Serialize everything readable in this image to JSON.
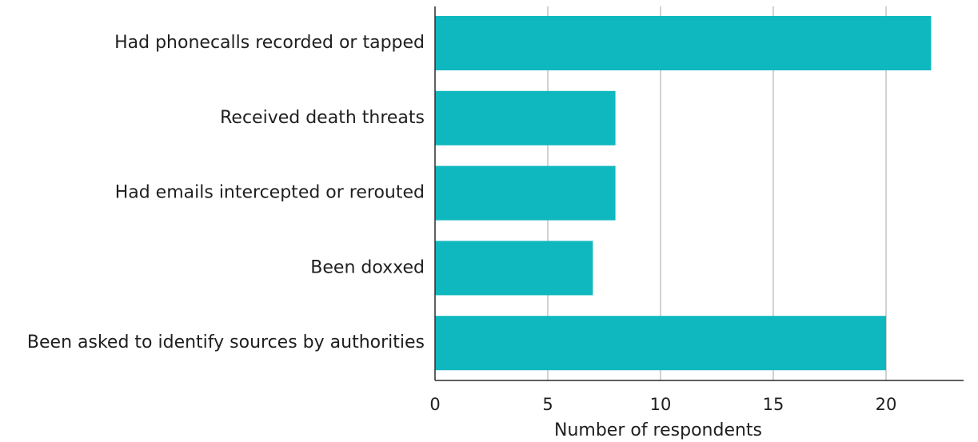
{
  "chart_data": {
    "type": "bar",
    "orientation": "horizontal",
    "categories": [
      "Had phonecalls recorded or tapped",
      "Received death threats",
      "Had emails intercepted or rerouted",
      "Been doxxed",
      "Been asked to identify sources by authorities"
    ],
    "values": [
      22,
      8,
      8,
      7,
      20
    ],
    "xlabel": "Number of respondents",
    "ylabel": "",
    "xlim": [
      0,
      24
    ],
    "xticks": [
      0,
      5,
      10,
      15,
      20
    ],
    "grid": "vertical",
    "bar_color": "#0fb8bf",
    "grid_color": "#a6a6a6",
    "axis_color": "#2b2b2b"
  }
}
